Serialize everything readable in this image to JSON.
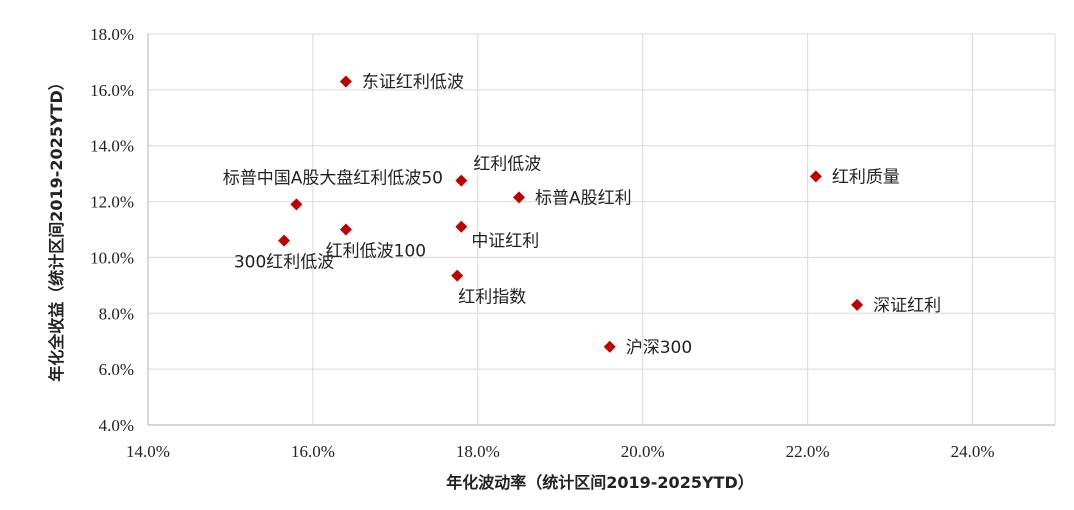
{
  "chart_data": {
    "type": "scatter",
    "xlabel": "年化波动率（统计区间2019-2025YTD）",
    "ylabel": "年化全收益（统计区间2019-2025YTD）",
    "xlim": [
      0.14,
      0.25
    ],
    "ylim": [
      0.04,
      0.18
    ],
    "x_ticks": [
      0.14,
      0.16,
      0.18,
      0.2,
      0.22,
      0.24
    ],
    "x_tick_labels": [
      "14.0%",
      "16.0%",
      "18.0%",
      "20.0%",
      "22.0%",
      "24.0%"
    ],
    "y_ticks": [
      0.04,
      0.06,
      0.08,
      0.1,
      0.12,
      0.14,
      0.16,
      0.18
    ],
    "y_tick_labels": [
      "4.0%",
      "6.0%",
      "8.0%",
      "10.0%",
      "12.0%",
      "14.0%",
      "16.0%",
      "18.0%"
    ],
    "grid": true,
    "marker_color": "#c00000",
    "points": [
      {
        "label": "东证红利低波",
        "x": 0.164,
        "y": 0.163,
        "label_pos": "right"
      },
      {
        "label": "标普中国A股大盘红利低波50",
        "x": 0.158,
        "y": 0.119,
        "label_pos": "upper-left"
      },
      {
        "label": "300红利低波",
        "x": 0.1565,
        "y": 0.106,
        "label_pos": "below"
      },
      {
        "label": "红利低波100",
        "x": 0.164,
        "y": 0.11,
        "label_pos": "below"
      },
      {
        "label": "红利低波",
        "x": 0.178,
        "y": 0.1275,
        "label_pos": "upper-right"
      },
      {
        "label": "标普A股红利",
        "x": 0.185,
        "y": 0.1215,
        "label_pos": "right"
      },
      {
        "label": "中证红利",
        "x": 0.178,
        "y": 0.111,
        "label_pos": "lower-right"
      },
      {
        "label": "红利指数",
        "x": 0.1775,
        "y": 0.0935,
        "label_pos": "below"
      },
      {
        "label": "沪深300",
        "x": 0.196,
        "y": 0.068,
        "label_pos": "right"
      },
      {
        "label": "红利质量",
        "x": 0.221,
        "y": 0.129,
        "label_pos": "right"
      },
      {
        "label": "深证红利",
        "x": 0.226,
        "y": 0.083,
        "label_pos": "right"
      }
    ]
  }
}
